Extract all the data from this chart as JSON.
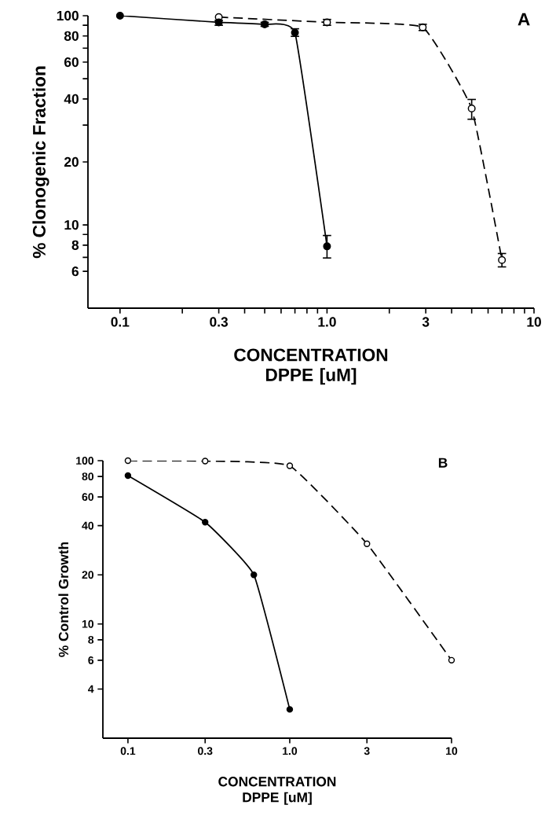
{
  "chart_data": [
    {
      "type": "line",
      "title": "A",
      "xlabel": "CONCENTRATION DPPE [uM]",
      "ylabel": "% Clonogenic Fraction",
      "log": "xy",
      "grid": false,
      "marker": "circle",
      "series": [
        {
          "color": "#000000",
          "line_style": "solid",
          "x": [
            0.1,
            0.3,
            0.5,
            0.7,
            1.0
          ],
          "values": [
            100,
            93,
            91,
            83,
            7.9
          ],
          "errors": [
            null,
            [
              90,
              95
            ],
            [
              89,
              93
            ],
            [
              79.7,
              86.6
            ],
            [
              6.95,
              8.9
            ]
          ]
        },
        {
          "color": "#000000",
          "line_style": "dashed",
          "x": [
            0.3,
            1.0,
            2.9,
            5,
            7
          ],
          "values": [
            98.5,
            93,
            88,
            36,
            6.8
          ],
          "errors": [
            null,
            [
              90,
              96
            ],
            [
              85,
              91
            ],
            [
              32,
              39.8
            ],
            [
              6.3,
              7.3
            ]
          ]
        }
      ],
      "xlim": [
        0.07,
        10
      ],
      "ylim": [
        4,
        100
      ],
      "xticks": [
        {
          "value": 0.1,
          "label": "0.1"
        },
        {
          "value": 0.2,
          "label": null
        },
        {
          "value": 0.3,
          "label": "0.3"
        },
        {
          "value": 0.4,
          "label": null
        },
        {
          "value": 0.5,
          "label": null
        },
        {
          "value": 0.6,
          "label": null
        },
        {
          "value": 0.7,
          "label": null
        },
        {
          "value": 0.8,
          "label": null
        },
        {
          "value": 0.9,
          "label": null
        },
        {
          "value": 1,
          "label": "1.0"
        },
        {
          "value": 2,
          "label": null
        },
        {
          "value": 3,
          "label": "3"
        },
        {
          "value": 4,
          "label": null
        },
        {
          "value": 5,
          "label": null
        },
        {
          "value": 6,
          "label": null
        },
        {
          "value": 7,
          "label": null
        },
        {
          "value": 8,
          "label": null
        },
        {
          "value": 9,
          "label": null
        },
        {
          "value": 10,
          "label": "10"
        }
      ],
      "yticks": [
        6,
        {
          "value": 7,
          "label": null
        },
        8,
        {
          "value": 9,
          "label": null
        },
        10,
        20,
        {
          "value": 30,
          "label": null
        },
        40,
        {
          "value": 50,
          "label": null
        },
        60,
        {
          "value": 70,
          "label": null
        },
        80,
        {
          "value": 90,
          "label": null
        },
        100
      ]
    },
    {
      "type": "line",
      "title": "B",
      "xlabel": "CONCENTRATION DPPE [uM]",
      "ylabel": "% Control Growth",
      "log": "xy",
      "grid": false,
      "marker": "circle",
      "series": [
        {
          "color": "#000000",
          "line_style": "solid",
          "x": [
            0.1,
            0.3,
            0.6,
            1.0
          ],
          "values": [
            81,
            42,
            20,
            3
          ]
        },
        {
          "color": "#000000",
          "line_style": "dashed",
          "x": [
            0.1,
            0.3,
            1.0,
            3,
            10
          ],
          "values": [
            100,
            99.5,
            93,
            31,
            6
          ]
        }
      ],
      "xlim": [
        0.07,
        10
      ],
      "ylim": [
        2,
        100
      ],
      "xticks": [
        {
          "value": 0.1,
          "label": "0.1"
        },
        {
          "value": 0.3,
          "label": "0.3"
        },
        {
          "value": 1,
          "label": "1.0"
        },
        3,
        10
      ],
      "yticks": [
        4,
        6,
        8,
        10,
        20,
        40,
        60,
        80,
        100
      ]
    }
  ]
}
